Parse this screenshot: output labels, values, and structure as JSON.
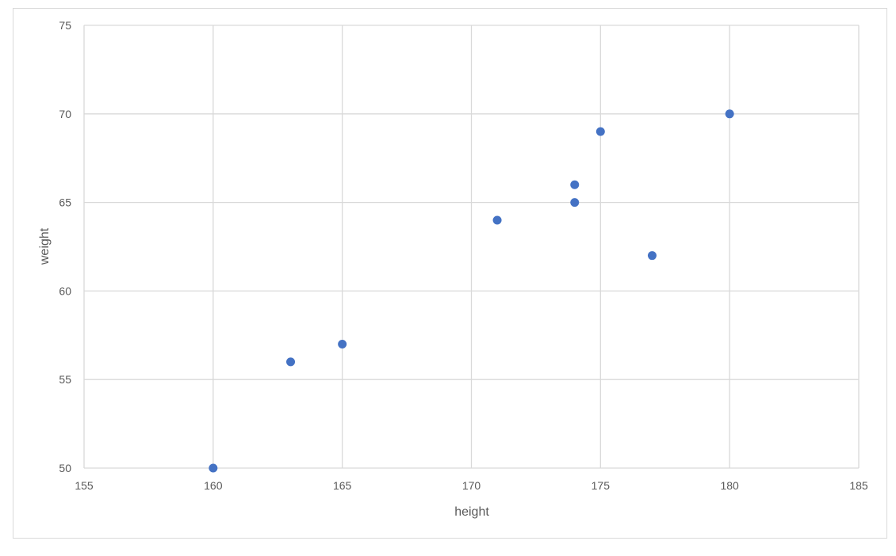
{
  "chart_data": {
    "type": "scatter",
    "xlabel": "height",
    "ylabel": "weight",
    "xlim": [
      155,
      185
    ],
    "ylim": [
      50,
      75
    ],
    "xticks": [
      155,
      160,
      165,
      170,
      175,
      180,
      185
    ],
    "yticks": [
      50,
      55,
      60,
      65,
      70,
      75
    ],
    "grid": true,
    "legend": "none",
    "marker_color": "#4472C4",
    "grid_color": "#d9d9d9",
    "series": [
      {
        "points": [
          {
            "x": 160,
            "y": 50
          },
          {
            "x": 163,
            "y": 56
          },
          {
            "x": 165,
            "y": 57
          },
          {
            "x": 171,
            "y": 64
          },
          {
            "x": 174,
            "y": 66
          },
          {
            "x": 174,
            "y": 65
          },
          {
            "x": 175,
            "y": 69
          },
          {
            "x": 177,
            "y": 62
          },
          {
            "x": 180,
            "y": 70
          }
        ]
      }
    ]
  }
}
